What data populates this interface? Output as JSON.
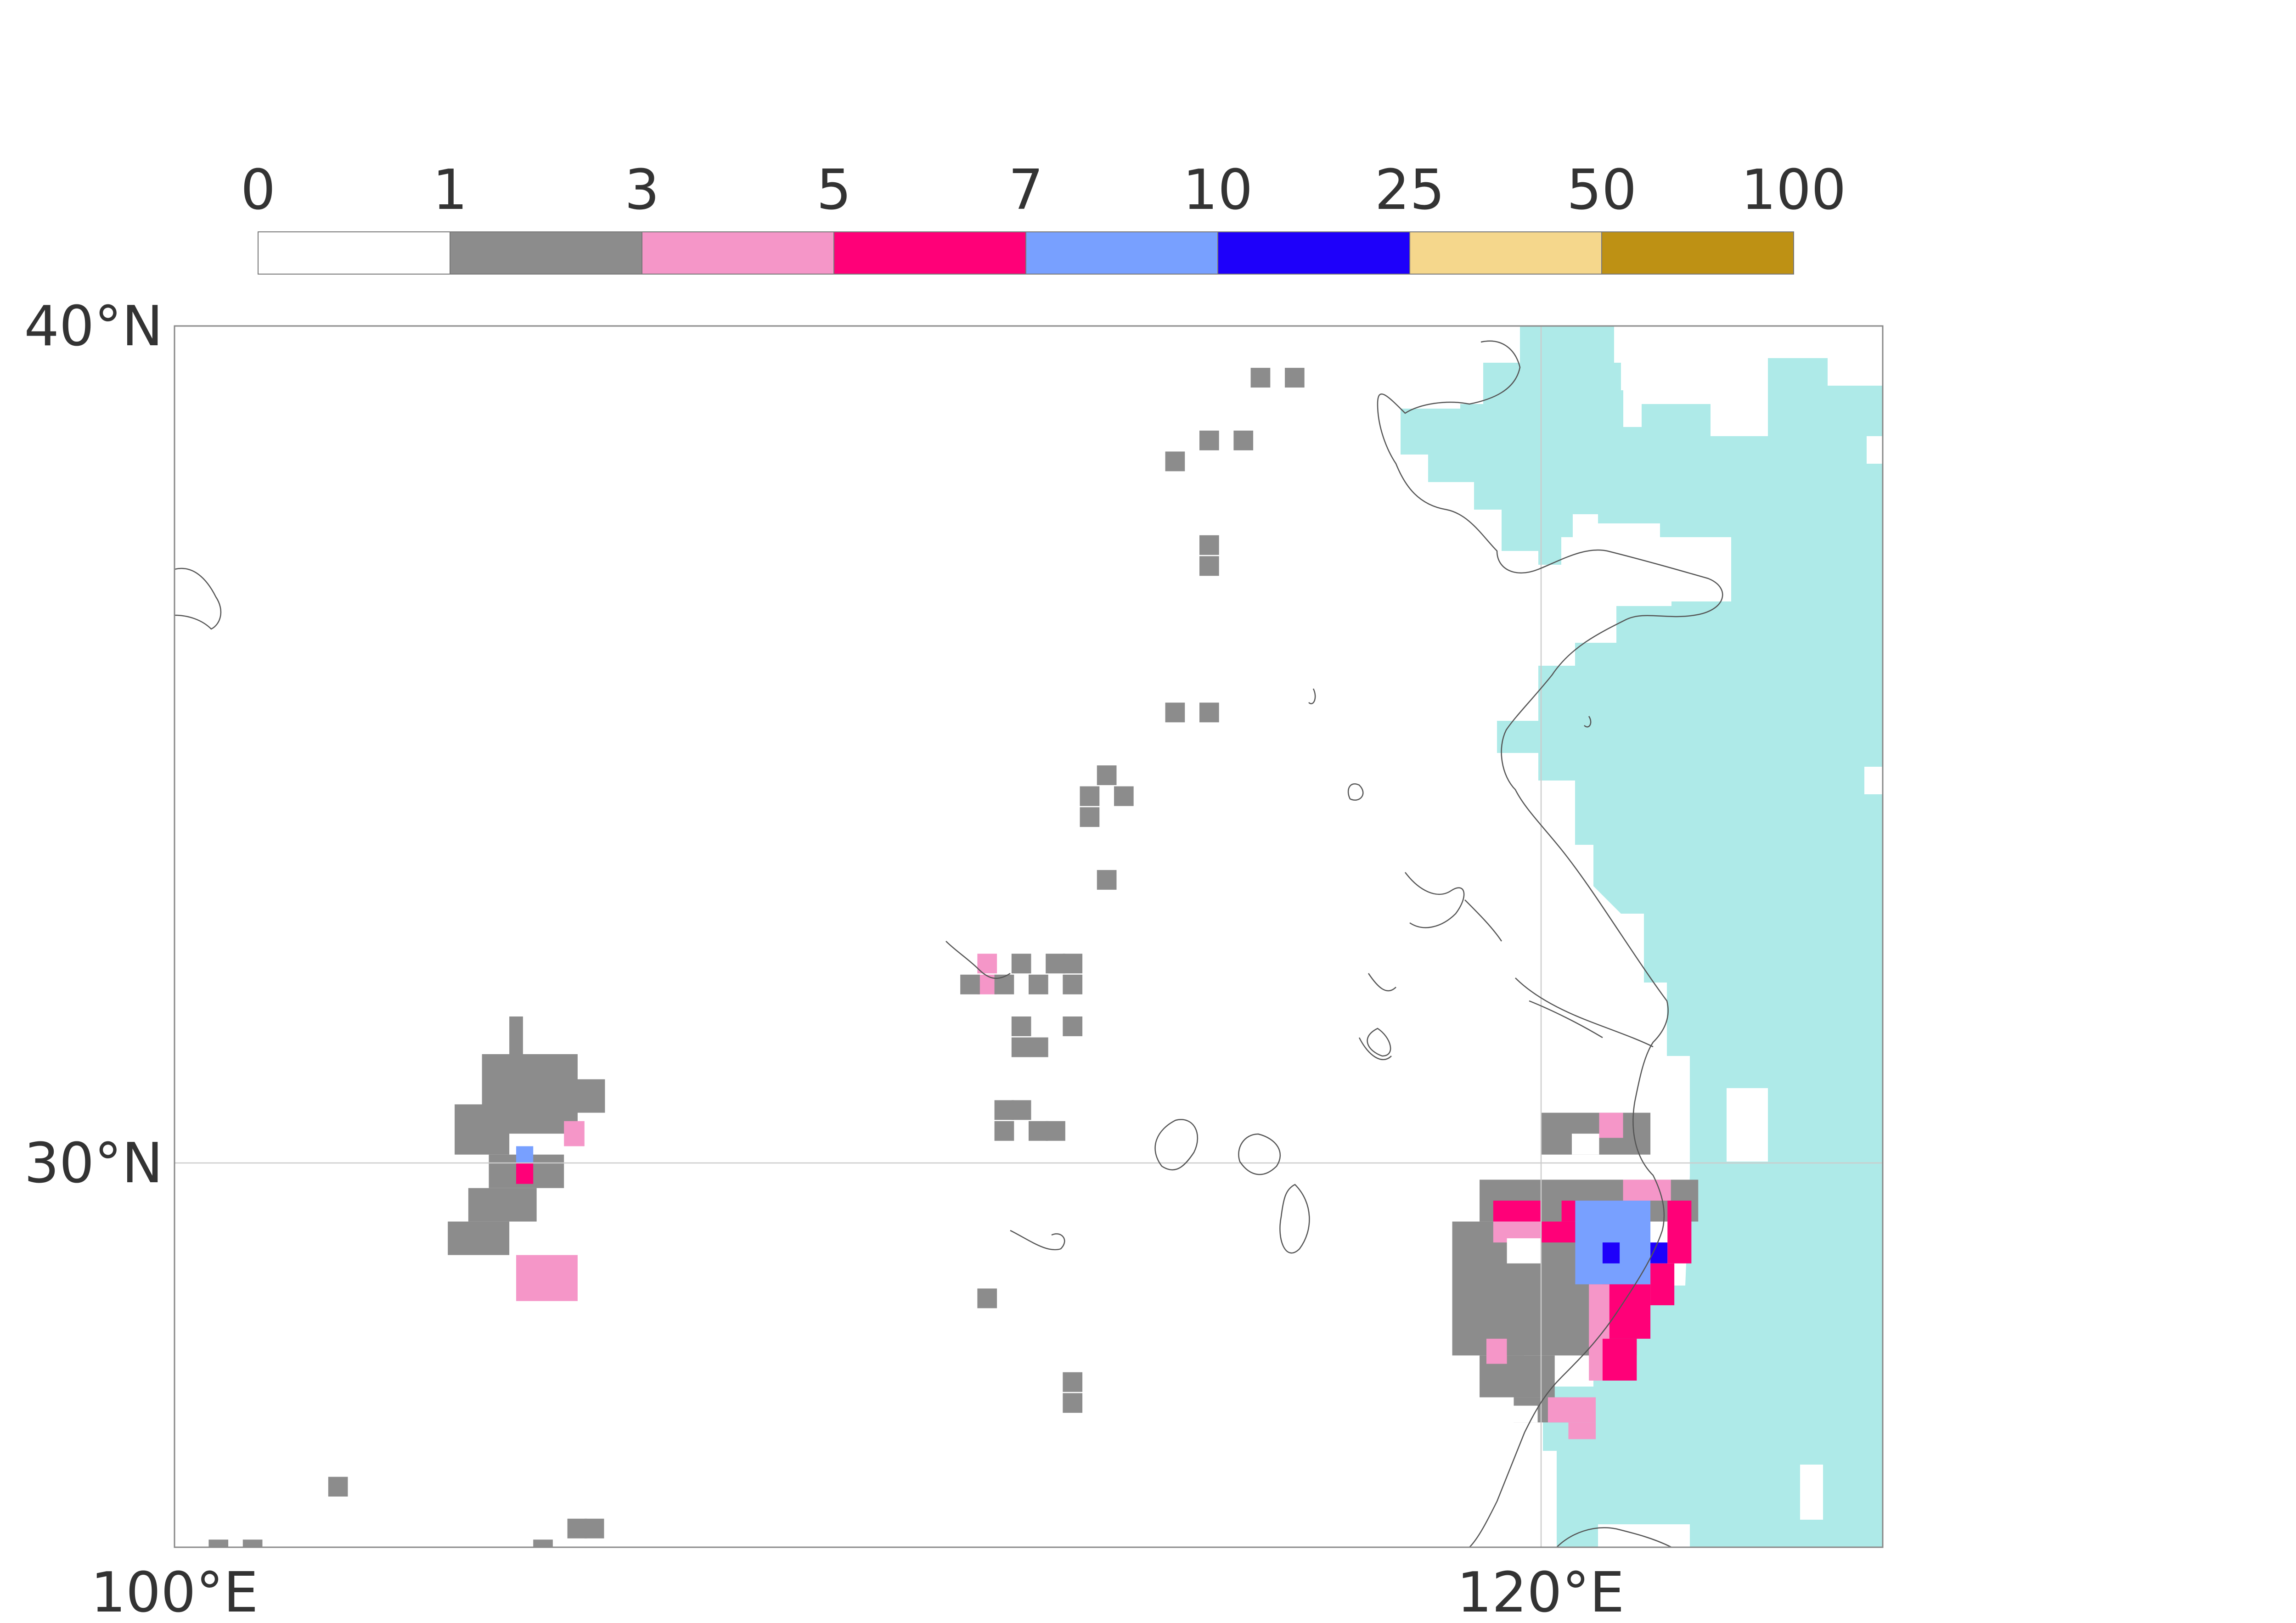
{
  "colorbar": {
    "ticks": [
      "0",
      "1",
      "3",
      "5",
      "7",
      "10",
      "25",
      "50",
      "100"
    ],
    "colors": [
      "#ffffff",
      "#8c8c8c",
      "#f596c8",
      "#ff0078",
      "#78a0ff",
      "#1e00fa",
      "#f5d78c",
      "#be9114"
    ]
  },
  "axes": {
    "x_ticks": [
      "100°E",
      "120°E"
    ],
    "y_ticks": [
      "40°N",
      "30°N"
    ],
    "lon_range": [
      100,
      125
    ],
    "lat_range": [
      25.4,
      40
    ],
    "gridlines": true
  },
  "colors": {
    "sea": "#aeeae8",
    "coast": "#555555",
    "frame": "#888888",
    "grid": "#cccccc"
  },
  "map_data": {
    "cell_deg": 0.5,
    "class_colors": {
      "1": "#8c8c8c",
      "2": "#f596c8",
      "3": "#ff0078",
      "4": "#78a0ff",
      "5": "#1e00fa"
    },
    "cells": [
      [
        115.75,
        39.5,
        1
      ],
      [
        116.25,
        39.5,
        1
      ],
      [
        114.5,
        38.5,
        1
      ],
      [
        115.0,
        38.75,
        1
      ],
      [
        115.5,
        38.75,
        1
      ],
      [
        115.0,
        37.5,
        1
      ],
      [
        115.0,
        37.25,
        1
      ],
      [
        114.5,
        35.5,
        1
      ],
      [
        115.0,
        35.5,
        1
      ],
      [
        113.25,
        34.5,
        1
      ],
      [
        113.5,
        34.75,
        1
      ],
      [
        113.75,
        34.5,
        1
      ],
      [
        113.25,
        34.25,
        1
      ],
      [
        113.5,
        33.5,
        1
      ],
      [
        111.75,
        32.5,
        2
      ],
      [
        111.75,
        32.25,
        2
      ],
      [
        112.25,
        32.5,
        1
      ],
      [
        112.75,
        32.5,
        1
      ],
      [
        113.0,
        32.5,
        1
      ],
      [
        112.0,
        32.25,
        1
      ],
      [
        112.5,
        32.25,
        1
      ],
      [
        113.0,
        32.25,
        1
      ],
      [
        111.5,
        32.25,
        1
      ],
      [
        112.25,
        31.75,
        1
      ],
      [
        112.25,
        31.5,
        1
      ],
      [
        112.5,
        31.5,
        1
      ],
      [
        113.0,
        31.75,
        1
      ],
      [
        112.0,
        30.75,
        1
      ],
      [
        112.0,
        30.5,
        1
      ],
      [
        112.5,
        30.5,
        1
      ],
      [
        112.75,
        30.5,
        1
      ],
      [
        112.25,
        30.75,
        1
      ],
      [
        111.75,
        28.5,
        1
      ],
      [
        113.0,
        27.25,
        1
      ],
      [
        113.0,
        27.5,
        1
      ],
      [
        102.25,
        26.25,
        1
      ],
      [
        106.0,
        25.75,
        1
      ],
      [
        105.75,
        25.75,
        1
      ],
      [
        100.5,
        25.5,
        1
      ],
      [
        101.0,
        25.5,
        1
      ],
      [
        105.25,
        25.5,
        1
      ]
    ],
    "cluster_a": {
      "lon": [
        104.0,
        106.5
      ],
      "lat": [
        28.25,
        31.5
      ]
    },
    "cluster_b": {
      "lon": [
        117.5,
        122.5
      ],
      "lat": [
        26.25,
        31.0
      ]
    }
  }
}
